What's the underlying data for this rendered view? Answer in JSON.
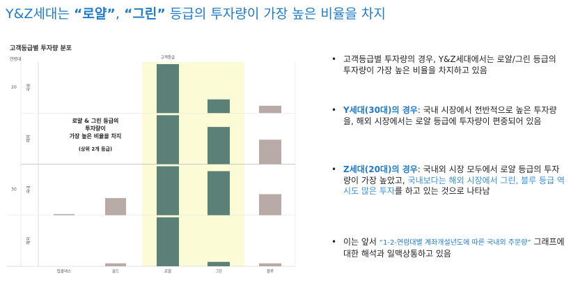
{
  "title": {
    "prefix": "Y&Z세대는 ",
    "bold1": "“로얄”",
    "mid": ", ",
    "bold2": "“그린”",
    "suffix": " 등급의 투자량이 가장 높은 비율을 차지"
  },
  "chart_title": "고객등급별 투자량 분포",
  "y_unit": "연령대",
  "highlight_label": "고객등급",
  "annotation": {
    "line1": "로얄 & 그린 등급의",
    "line2": "투자량이",
    "line3": "가장 높은 비율을 차지",
    "sub": "(상위 2개 등급)"
  },
  "chart_data": {
    "type": "bar",
    "categories": [
      "탑클래스",
      "골드",
      "로얄",
      "그린",
      "블루"
    ],
    "rows": [
      {
        "age": "20",
        "market": "국내",
        "values": [
          0,
          0,
          100,
          28,
          15
        ]
      },
      {
        "age": "",
        "market": "해외",
        "values": [
          0,
          0,
          100,
          76,
          50
        ]
      },
      {
        "age": "30",
        "market": "국내",
        "values": [
          2,
          35,
          100,
          90,
          43
        ]
      },
      {
        "age": "",
        "market": "해외",
        "values": [
          0,
          6,
          100,
          9,
          6
        ]
      }
    ],
    "highlighted": [
      "로얄",
      "그린"
    ],
    "colors": {
      "highlight_bar": "#5b8077",
      "other_bar": "#b8aaa6",
      "highlight_bg": "#fbfbd6"
    }
  },
  "bullets": {
    "b1": {
      "dot": "•",
      "text": "고객등급별 투자량의 경우, Y&Z세대에서는 로얄/그린 등급의 투자량이 가장 높은 비율을 차지하고 있음"
    },
    "b2": {
      "dot": "•",
      "lead": "Y세대(30대)의 경우",
      "text": ": 국내 시장에서 전반적으로 높은 투자량을, 해외 시장에서는 로얄 등급에 투자량이 편중되어 있음"
    },
    "b3": {
      "dot": "•",
      "lead": "Z세대(20대)의 경우",
      "text": ": 국내외 시장 모두에서 로얄 등급의 투자량이 가장 높았고, ",
      "highlight": "국내보다는 해외 시장에서 그린, 블루 등급 역시도 많은 투자",
      "tail": "를 하고 있는 것으로 나타남"
    },
    "b4": {
      "dot": "•",
      "pre": "이는 앞서 ",
      "quote": "“1-2-연령대별 계좌개설년도에 따른 국내외 주문량”",
      "text": " 그래프에 대한 해석과 일맥상통하고 있음"
    }
  }
}
